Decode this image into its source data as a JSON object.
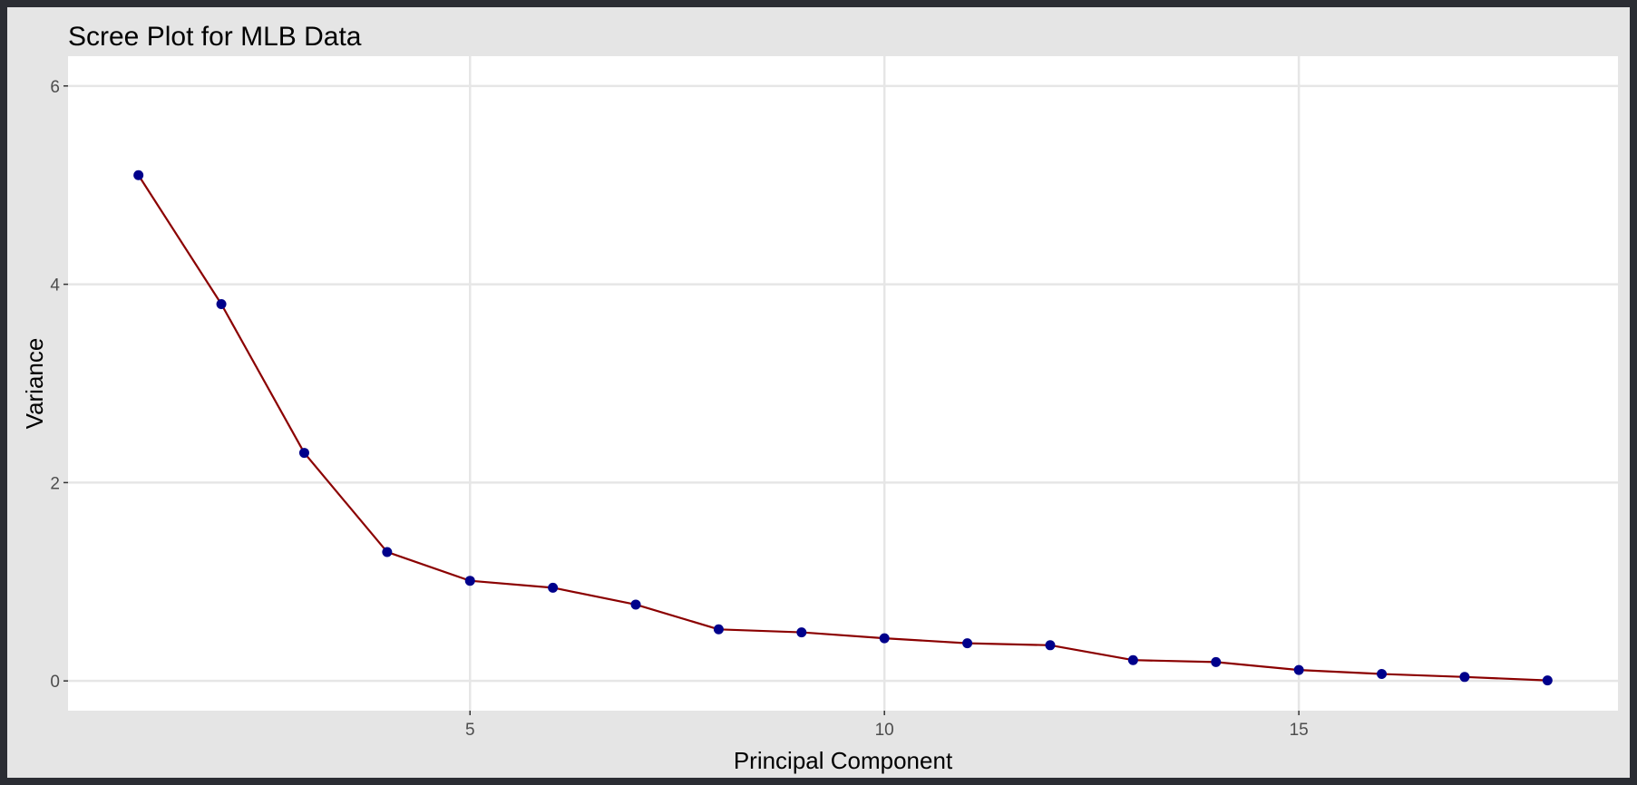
{
  "chart_data": {
    "type": "line",
    "title": "Scree Plot for MLB Data",
    "xlabel": "Principal Component",
    "ylabel": "Variance",
    "x": [
      1,
      2,
      3,
      4,
      5,
      6,
      7,
      8,
      9,
      10,
      11,
      12,
      13,
      14,
      15,
      16,
      17,
      18
    ],
    "values": [
      5.1,
      3.8,
      2.3,
      1.3,
      1.01,
      0.94,
      0.77,
      0.52,
      0.49,
      0.43,
      0.38,
      0.36,
      0.21,
      0.19,
      0.11,
      0.07,
      0.04,
      0.005
    ],
    "xlim": [
      0.15,
      18.85
    ],
    "ylim": [
      -0.3,
      6.3
    ],
    "x_ticks": [
      5,
      10,
      15
    ],
    "x_tick_labels": [
      "5",
      "10",
      "15"
    ],
    "y_ticks": [
      0,
      2,
      4,
      6
    ],
    "y_tick_labels": [
      "0",
      "2",
      "4",
      "6"
    ],
    "grid": true,
    "line_color": "#8b0000",
    "point_color": "#00008b",
    "panel_background": "#ffffff",
    "plot_background": "#e5e5e5",
    "grid_color": "#e6e6e6"
  }
}
